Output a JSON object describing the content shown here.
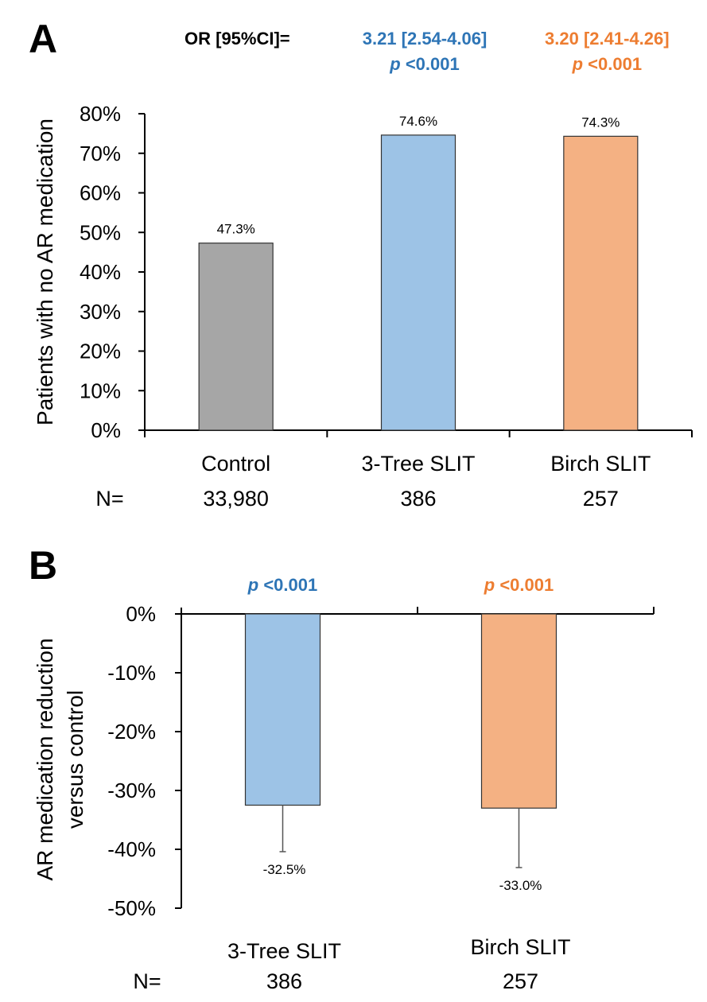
{
  "colors": {
    "control": "#a6a6a6",
    "tree": "#9dc3e6",
    "birch": "#f4b183",
    "tree_text": "#2e75b6",
    "birch_text": "#ed7d31",
    "axis": "#000000",
    "bar_outline": "#333333"
  },
  "chart_data": [
    {
      "panel": "A",
      "type": "bar",
      "title": "",
      "header_label": "OR [95%CI]=",
      "annotations": [
        {
          "category": "3-Tree SLIT",
          "or_ci": "3.21 [2.54-4.06]",
          "p_prefix": "p",
          "p_value": "<0.001",
          "color_key": "tree_text"
        },
        {
          "category": "Birch SLIT",
          "or_ci": "3.20 [2.41-4.26]",
          "p_prefix": "p",
          "p_value": "<0.001",
          "color_key": "birch_text"
        }
      ],
      "ylabel": "Patients with no AR medication",
      "xlabel": "",
      "categories": [
        "Control",
        "3-Tree SLIT",
        "Birch SLIT"
      ],
      "n_label": "N=",
      "n_values": [
        "33,980",
        "386",
        "257"
      ],
      "values": [
        47.3,
        74.6,
        74.3
      ],
      "data_labels": [
        "47.3%",
        "74.6%",
        "74.3%"
      ],
      "bar_color_keys": [
        "control",
        "tree",
        "birch"
      ],
      "ylim": [
        0,
        80
      ],
      "yticks": [
        0,
        10,
        20,
        30,
        40,
        50,
        60,
        70,
        80
      ],
      "ytick_labels": [
        "0%",
        "10%",
        "20%",
        "30%",
        "40%",
        "50%",
        "60%",
        "70%",
        "80%"
      ],
      "grid": false,
      "legend": "none"
    },
    {
      "panel": "B",
      "type": "bar",
      "title": "",
      "annotations": [
        {
          "category": "3-Tree SLIT",
          "p_prefix": "p",
          "p_value": "<0.001",
          "color_key": "tree_text"
        },
        {
          "category": "Birch SLIT",
          "p_prefix": "p",
          "p_value": "<0.001",
          "color_key": "birch_text"
        }
      ],
      "ylabel_lines": [
        "AR medication reduction",
        "versus control"
      ],
      "xlabel": "",
      "categories": [
        "3-Tree SLIT",
        "Birch SLIT"
      ],
      "n_label": "N=",
      "n_values": [
        "386",
        "257"
      ],
      "values": [
        -32.5,
        -33.0
      ],
      "error_lower": [
        -40.4,
        -43.1
      ],
      "data_labels": [
        "-32.5%",
        "-33.0%"
      ],
      "bar_color_keys": [
        "tree",
        "birch"
      ],
      "ylim": [
        -50,
        0
      ],
      "yticks": [
        0,
        -10,
        -20,
        -30,
        -40,
        -50
      ],
      "ytick_labels": [
        "0%",
        "-10%",
        "-20%",
        "-30%",
        "-40%",
        "-50%"
      ],
      "grid": false,
      "legend": "none"
    }
  ]
}
